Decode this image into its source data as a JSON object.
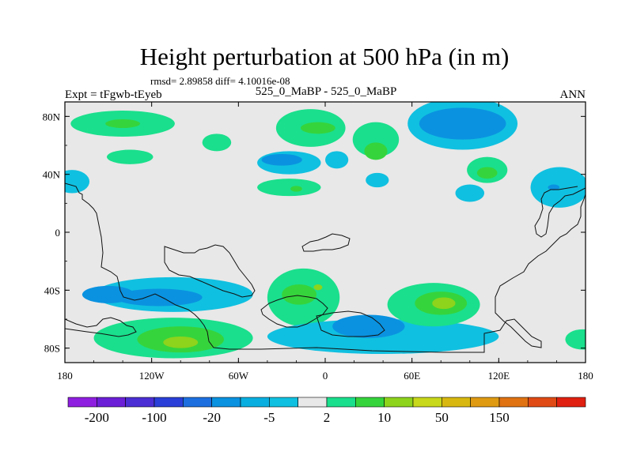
{
  "chart_data": {
    "type": "heatmap",
    "title": "Height perturbation at 500 hPa (in m)",
    "stats_text": "rmsd= 2.89858 diff= 4.10016e-08",
    "left_label": "Expt = tFgwb-tEyeb",
    "center_label": "525_0_MaBP - 525_0_MaBP",
    "right_label": "ANN",
    "x_range": [
      -180,
      180
    ],
    "y_range": [
      -90,
      90
    ],
    "x_ticks": [
      {
        "value": -180,
        "label": "180"
      },
      {
        "value": -120,
        "label": "120W"
      },
      {
        "value": -60,
        "label": "60W"
      },
      {
        "value": 0,
        "label": "0"
      },
      {
        "value": 60,
        "label": "60E"
      },
      {
        "value": 120,
        "label": "120E"
      },
      {
        "value": 180,
        "label": "180"
      }
    ],
    "y_ticks": [
      {
        "value": 80,
        "label": "80N"
      },
      {
        "value": 40,
        "label": "40N"
      },
      {
        "value": 0,
        "label": "0"
      },
      {
        "value": -40,
        "label": "40S"
      },
      {
        "value": -80,
        "label": "80S"
      }
    ],
    "colorbar": {
      "colors": [
        "#8f1fe0",
        "#6b1fd6",
        "#4b2ed4",
        "#2a3fd8",
        "#1d6fe0",
        "#0a92e0",
        "#09aee0",
        "#10c0e0",
        "#e8e8e8",
        "#1adf8c",
        "#36d43c",
        "#8ed31c",
        "#c8d81a",
        "#d8b810",
        "#e09a12",
        "#e07212",
        "#e04a14",
        "#e02010"
      ],
      "labels": [
        {
          "boundary": 1,
          "text": "-200"
        },
        {
          "boundary": 3,
          "text": "-100"
        },
        {
          "boundary": 5,
          "text": "-20"
        },
        {
          "boundary": 7,
          "text": "-5"
        },
        {
          "boundary": 9,
          "text": "2"
        },
        {
          "boundary": 11,
          "text": "10"
        },
        {
          "boundary": 13,
          "text": "50"
        },
        {
          "boundary": 15,
          "text": "150"
        }
      ]
    },
    "fields": [
      {
        "lon": -140,
        "lat": 75,
        "rlon": 36,
        "rlat": 9,
        "value": 7
      },
      {
        "lon": -140,
        "lat": 75,
        "rlon": 12,
        "rlat": 3,
        "value": 15
      },
      {
        "lon": -135,
        "lat": 52,
        "rlon": 16,
        "rlat": 5,
        "value": 6
      },
      {
        "lon": -75,
        "lat": 62,
        "rlon": 10,
        "rlat": 6,
        "value": 6
      },
      {
        "lon": -25,
        "lat": 48,
        "rlon": 22,
        "rlat": 8,
        "value": -6
      },
      {
        "lon": -30,
        "lat": 50,
        "rlon": 14,
        "rlat": 4,
        "value": -12
      },
      {
        "lon": 8,
        "lat": 50,
        "rlon": 8,
        "rlat": 6,
        "value": -6
      },
      {
        "lon": -10,
        "lat": 72,
        "rlon": 24,
        "rlat": 13,
        "value": 6
      },
      {
        "lon": -5,
        "lat": 72,
        "rlon": 12,
        "rlat": 4,
        "value": 15
      },
      {
        "lon": 35,
        "lat": 64,
        "rlon": 16,
        "rlat": 12,
        "value": 6
      },
      {
        "lon": 35,
        "lat": 56,
        "rlon": 8,
        "rlat": 6,
        "value": 15
      },
      {
        "lon": -25,
        "lat": 31,
        "rlon": 22,
        "rlat": 6,
        "value": 6
      },
      {
        "lon": -20,
        "lat": 30,
        "rlon": 4,
        "rlat": 2,
        "value": 15
      },
      {
        "lon": 36,
        "lat": 36,
        "rlon": 8,
        "rlat": 5,
        "value": -6
      },
      {
        "lon": 95,
        "lat": 75,
        "rlon": 38,
        "rlat": 18,
        "value": -6
      },
      {
        "lon": 95,
        "lat": 75,
        "rlon": 30,
        "rlat": 11,
        "value": -12
      },
      {
        "lon": 112,
        "lat": 43,
        "rlon": 14,
        "rlat": 9,
        "value": 6
      },
      {
        "lon": 112,
        "lat": 41,
        "rlon": 7,
        "rlat": 4,
        "value": 15
      },
      {
        "lon": 100,
        "lat": 27,
        "rlon": 10,
        "rlat": 6,
        "value": -6
      },
      {
        "lon": 162,
        "lat": 31,
        "rlon": 20,
        "rlat": 14,
        "value": -6
      },
      {
        "lon": 158,
        "lat": 31,
        "rlon": 4,
        "rlat": 2,
        "value": -12
      },
      {
        "lon": -105,
        "lat": -43,
        "rlon": 55,
        "rlat": 12,
        "value": -6
      },
      {
        "lon": -115,
        "lat": -45,
        "rlon": 30,
        "rlat": 6,
        "value": -12
      },
      {
        "lon": -150,
        "lat": -43,
        "rlon": 18,
        "rlat": 6,
        "value": -12
      },
      {
        "lon": -105,
        "lat": -73,
        "rlon": 55,
        "rlat": 14,
        "value": 6
      },
      {
        "lon": -100,
        "lat": -74,
        "rlon": 30,
        "rlat": 9,
        "value": 15
      },
      {
        "lon": -100,
        "lat": -76,
        "rlon": 12,
        "rlat": 4,
        "value": 30
      },
      {
        "lon": -15,
        "lat": -45,
        "rlon": 25,
        "rlat": 20,
        "value": 6
      },
      {
        "lon": -18,
        "lat": -43,
        "rlon": 12,
        "rlat": 7,
        "value": 15
      },
      {
        "lon": -5,
        "lat": -38,
        "rlon": 3,
        "rlat": 2,
        "value": 30
      },
      {
        "lon": 40,
        "lat": -72,
        "rlon": 80,
        "rlat": 12,
        "value": -6
      },
      {
        "lon": 30,
        "lat": -65,
        "rlon": 25,
        "rlat": 8,
        "value": -12
      },
      {
        "lon": 75,
        "lat": -50,
        "rlon": 32,
        "rlat": 15,
        "value": 6
      },
      {
        "lon": 80,
        "lat": -49,
        "rlon": 18,
        "rlat": 8,
        "value": 15
      },
      {
        "lon": 82,
        "lat": -49,
        "rlon": 8,
        "rlat": 4,
        "value": 30
      },
      {
        "lon": 178,
        "lat": -74,
        "rlon": 12,
        "rlat": 7,
        "value": 6
      },
      {
        "lon": -175,
        "lat": 35,
        "rlon": 12,
        "rlat": 8,
        "value": -6
      }
    ]
  }
}
